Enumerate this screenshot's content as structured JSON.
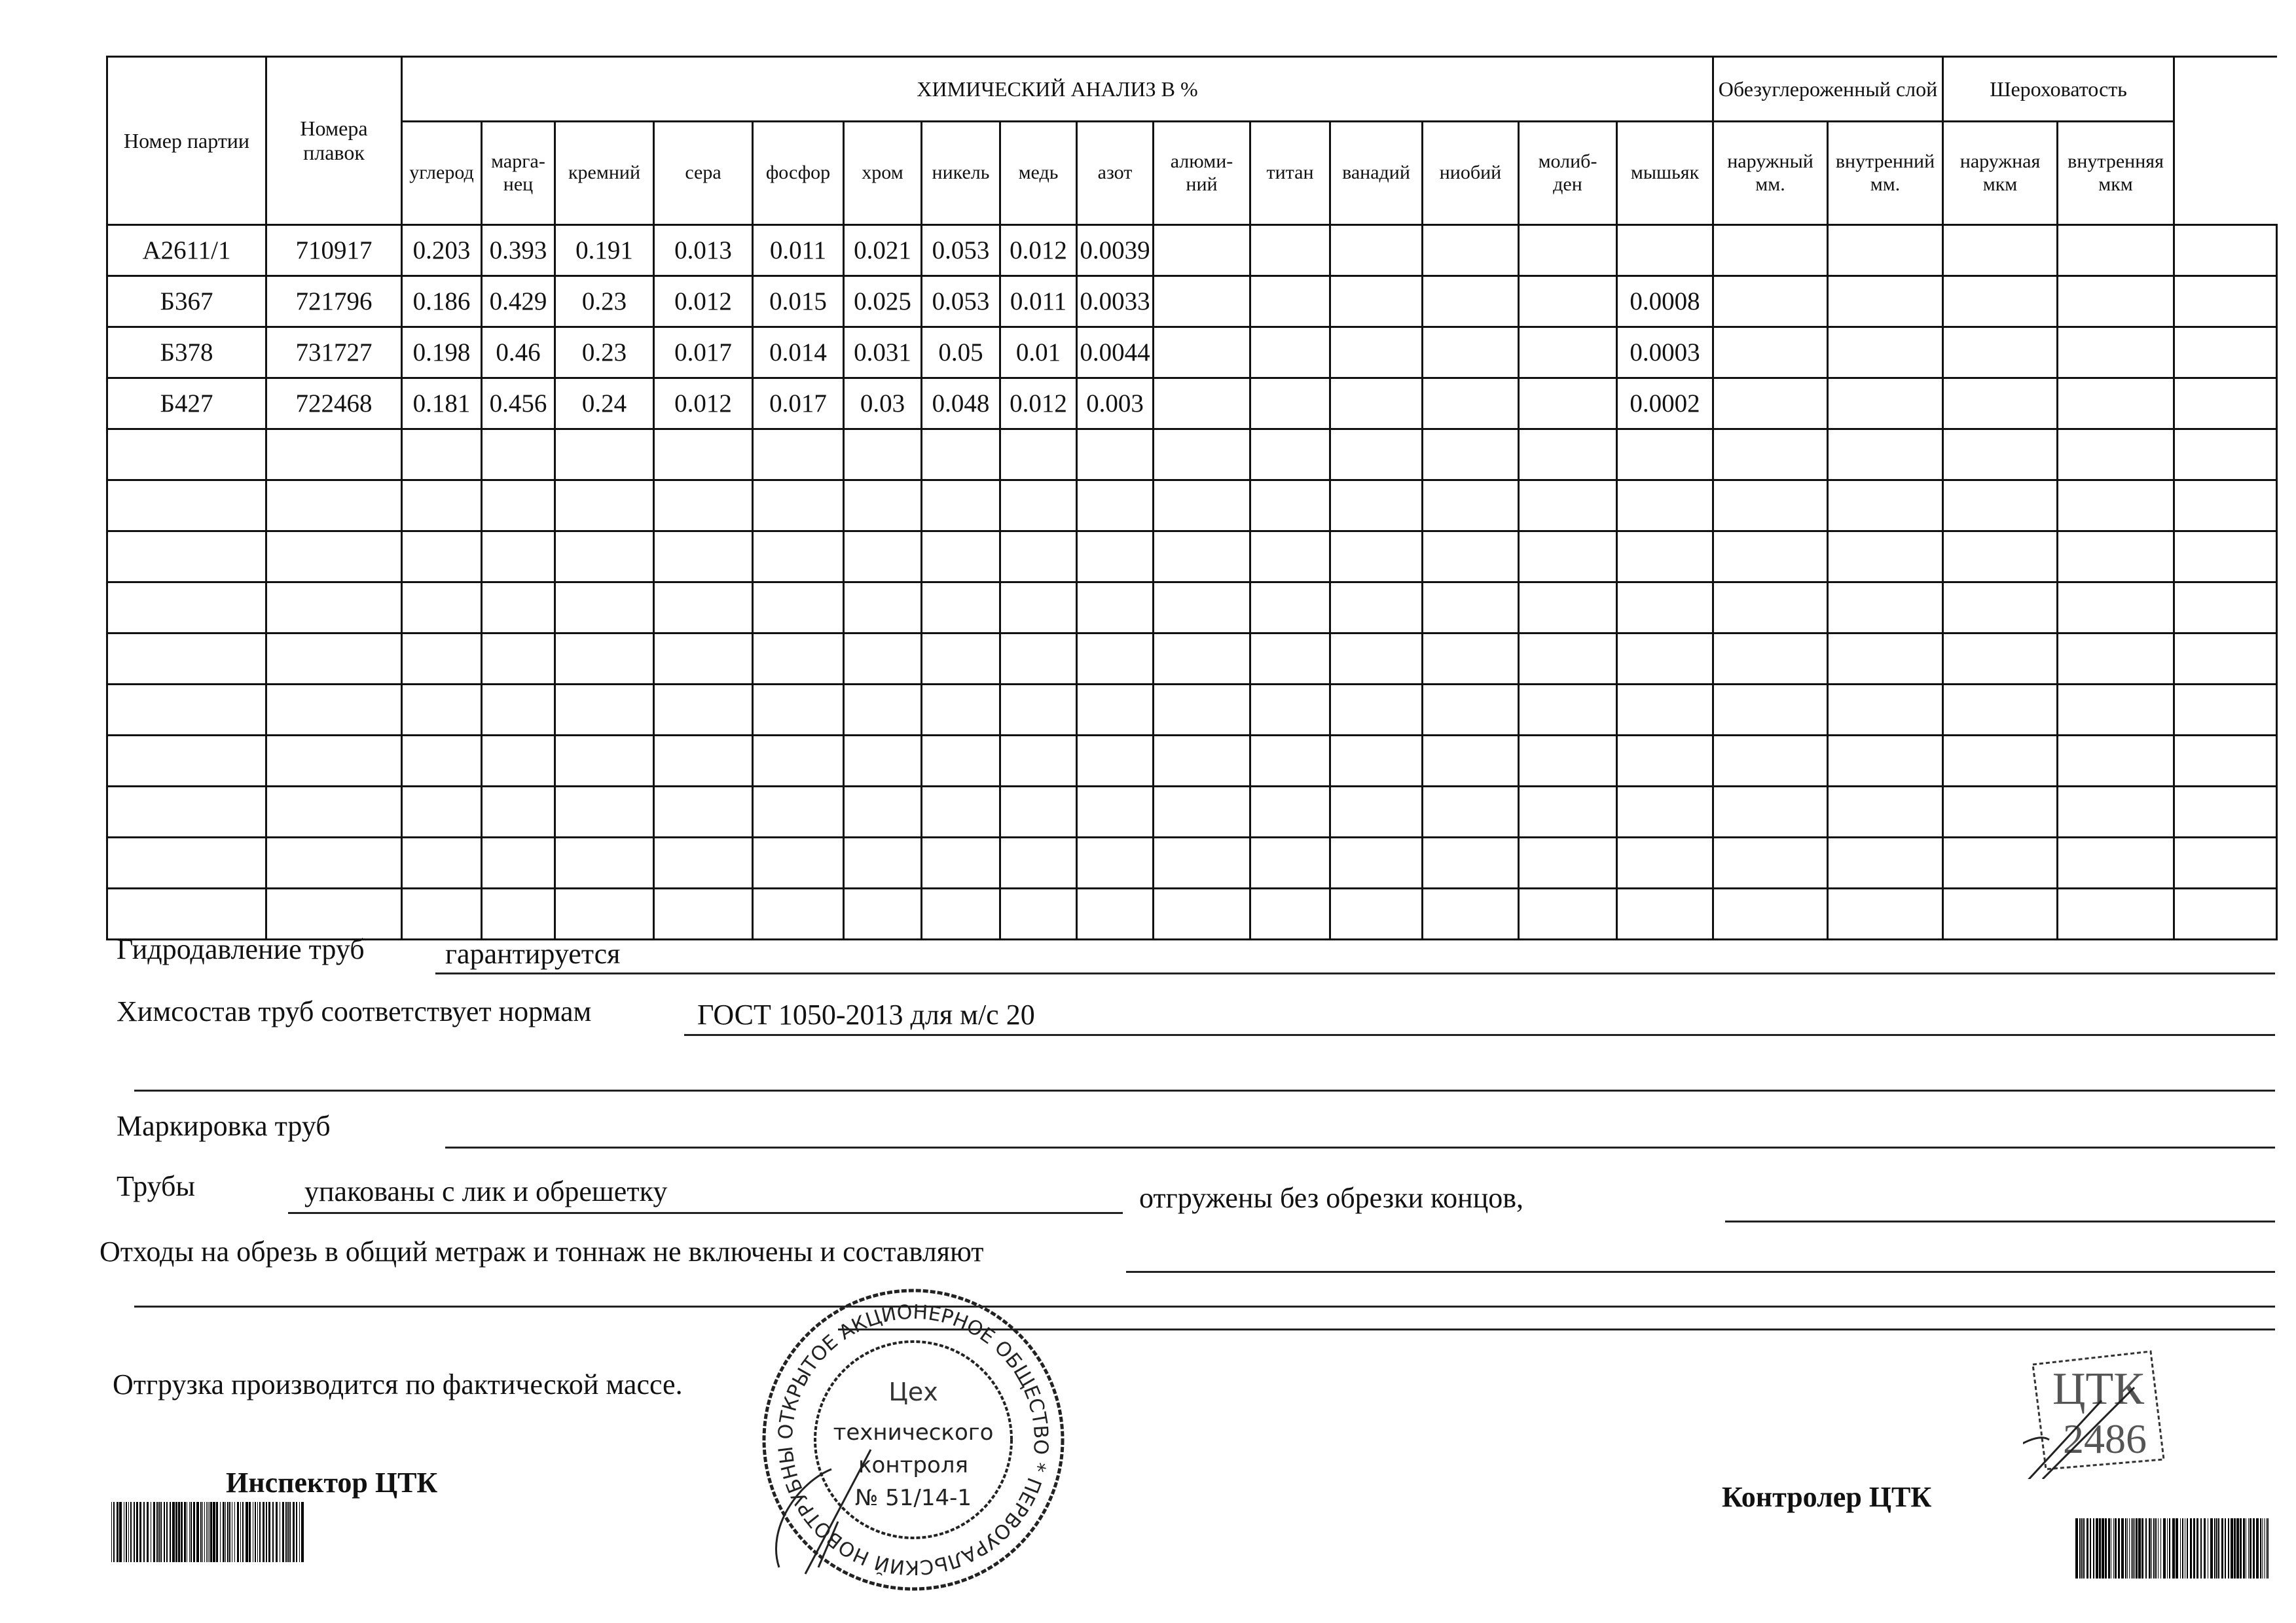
{
  "table": {
    "col_party": "Номер партии",
    "col_heats": "Номера плавок",
    "chem_title": "ХИМИЧЕСКИЙ АНАЛИЗ  В  %",
    "chem_columns": [
      "углерод",
      "марга-\nнец",
      "кремний",
      "сера",
      "фосфор",
      "хром",
      "никель",
      "медь",
      "азот",
      "алюми-\nний",
      "титан",
      "ванадий",
      "ниобий",
      "молиб-\nден",
      "мышьяк"
    ],
    "decarb_title": "Обезуглероженный слой",
    "decarb_columns": [
      "наружный\nмм.",
      "внутренний\nмм."
    ],
    "rough_title": "Шероховатость",
    "rough_columns": [
      "наружная\nмкм",
      "внутренняя\nмкм"
    ],
    "rows": [
      {
        "party": "А2611/1",
        "heat": "710917",
        "values": [
          "0.203",
          "0.393",
          "0.191",
          "0.013",
          "0.011",
          "0.021",
          "0.053",
          "0.012",
          "0.0039",
          "",
          "",
          "",
          "",
          "",
          ""
        ]
      },
      {
        "party": "Б367",
        "heat": "721796",
        "values": [
          "0.186",
          "0.429",
          "0.23",
          "0.012",
          "0.015",
          "0.025",
          "0.053",
          "0.011",
          "0.0033",
          "",
          "",
          "",
          "",
          "",
          "0.0008"
        ]
      },
      {
        "party": "Б378",
        "heat": "731727",
        "values": [
          "0.198",
          "0.46",
          "0.23",
          "0.017",
          "0.014",
          "0.031",
          "0.05",
          "0.01",
          "0.0044",
          "",
          "",
          "",
          "",
          "",
          "0.0003"
        ]
      },
      {
        "party": "Б427",
        "heat": "722468",
        "values": [
          "0.181",
          "0.456",
          "0.24",
          "0.012",
          "0.017",
          "0.03",
          "0.048",
          "0.012",
          "0.003",
          "",
          "",
          "",
          "",
          "",
          "0.0002"
        ]
      }
    ],
    "empty_rows": 10
  },
  "form": {
    "hydro_label": "Гидродавление труб",
    "hydro_value": "гарантируется",
    "chem_label": "Химсостав труб соответствует нормам",
    "chem_value": "ГОСТ 1050-2013 для м/с 20",
    "marking_label": "Маркировка труб",
    "pipes_label": "Трубы",
    "pipes_value": "упакованы с лик и обрешетку",
    "pipes_shipped": "отгружены без обрезки концов,",
    "waste_label": "Отходы на обрезь в общий метраж и тоннаж не включены и составляют",
    "shipment_note": "Отгрузка производится по фактической массе.",
    "inspector_label": "Инспектор ЦТК",
    "controller_label": "Контролер ЦТК"
  },
  "stamp_round": {
    "ring_text": "ОТКРЫТОЕ АКЦИОНЕРНОЕ ОБЩЕСТВО * ПЕРВОУРАЛЬСКИЙ НОВОТРУБНЫЙ ЗАВОД *",
    "line1": "Цех",
    "line2": "технического",
    "line3": "контроля",
    "line4": "№ 51/14-1"
  },
  "stamp_square": {
    "line1": "ЦТК",
    "line2": "2486"
  }
}
